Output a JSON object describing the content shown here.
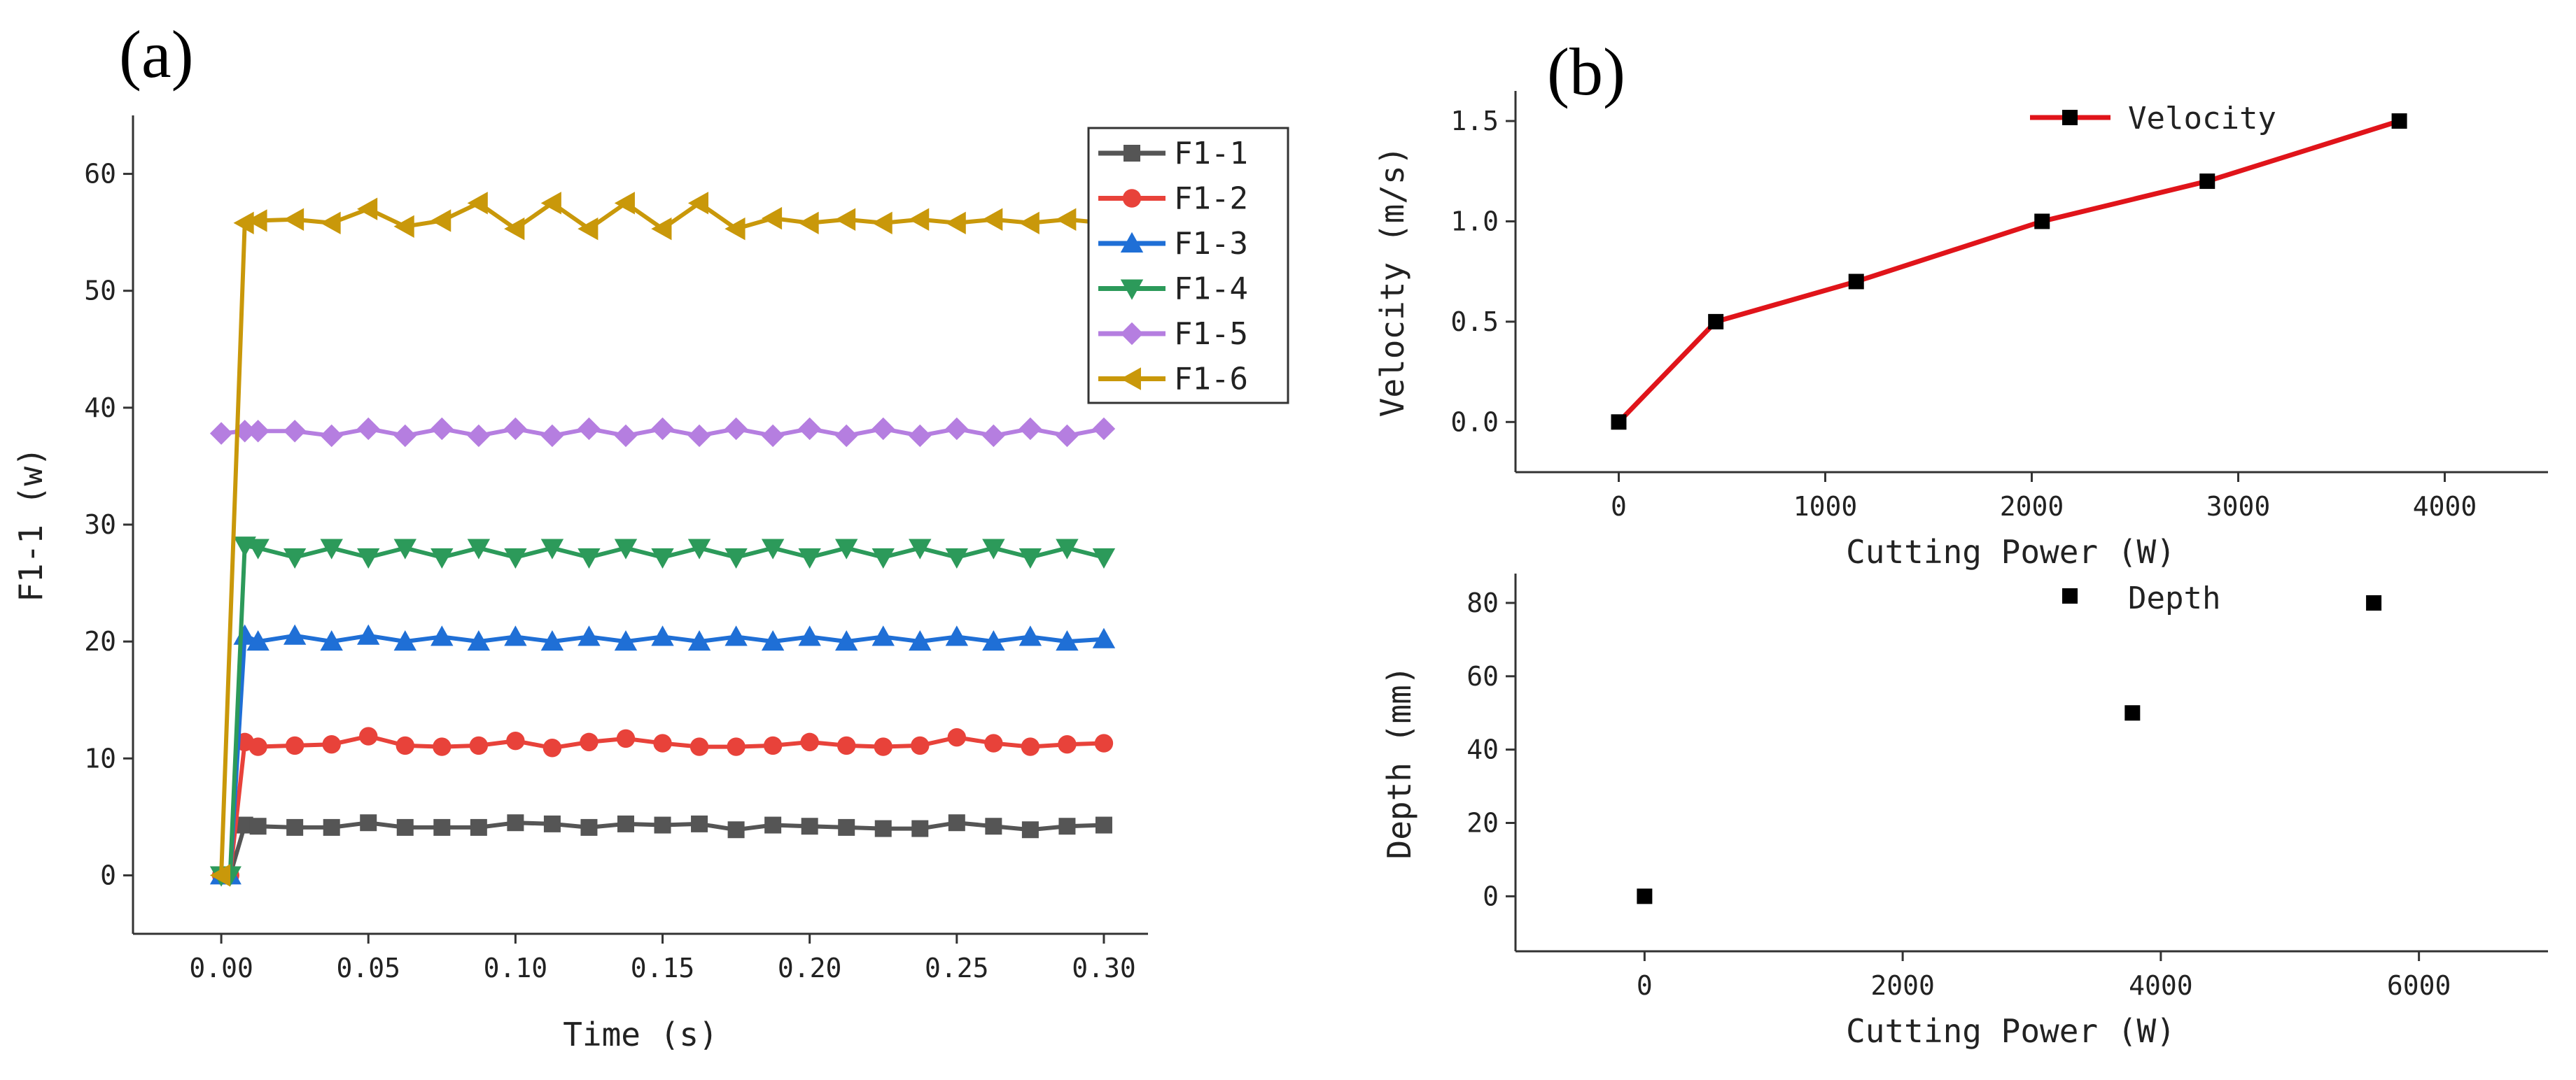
{
  "chart_data": [
    {
      "panel_label": "(a)",
      "type": "line",
      "xlabel": "Time (s)",
      "ylabel": "F1-1 (w)",
      "xlim": [
        -0.03,
        0.315
      ],
      "ylim": [
        -5,
        65
      ],
      "xticks": [
        0.0,
        0.05,
        0.1,
        0.15,
        0.2,
        0.25,
        0.3
      ],
      "xtick_labels": [
        "0.00",
        "0.05",
        "0.10",
        "0.15",
        "0.20",
        "0.25",
        "0.30"
      ],
      "yticks": [
        0,
        10,
        20,
        30,
        40,
        50,
        60
      ],
      "ytick_labels": [
        "0",
        "10",
        "20",
        "30",
        "40",
        "50",
        "60"
      ],
      "legend": {
        "placement": "top-right"
      },
      "x": [
        0,
        0.0125,
        0.025,
        0.0375,
        0.05,
        0.0625,
        0.075,
        0.0875,
        0.1,
        0.1125,
        0.125,
        0.1375,
        0.15,
        0.1625,
        0.175,
        0.1875,
        0.2,
        0.2125,
        0.225,
        0.2375,
        0.25,
        0.2625,
        0.275,
        0.2875,
        0.3
      ],
      "series": [
        {
          "name": "F1-1",
          "color": "#555555",
          "marker": "square",
          "x": [
            0,
            0.003,
            0.008,
            0.0125,
            0.025,
            0.0375,
            0.05,
            0.0625,
            0.075,
            0.0875,
            0.1,
            0.1125,
            0.125,
            0.1375,
            0.15,
            0.1625,
            0.175,
            0.1875,
            0.2,
            0.2125,
            0.225,
            0.2375,
            0.25,
            0.2625,
            0.275,
            0.2875,
            0.3
          ],
          "values": [
            0,
            0,
            4.3,
            4.2,
            4.1,
            4.1,
            4.5,
            4.1,
            4.1,
            4.1,
            4.5,
            4.4,
            4.1,
            4.4,
            4.3,
            4.4,
            3.9,
            4.3,
            4.2,
            4.1,
            4.0,
            4.0,
            4.5,
            4.2,
            3.9,
            4.2,
            4.3
          ]
        },
        {
          "name": "F1-2",
          "color": "#e8423a",
          "marker": "circle",
          "x": [
            0,
            0.003,
            0.008,
            0.0125,
            0.025,
            0.0375,
            0.05,
            0.0625,
            0.075,
            0.0875,
            0.1,
            0.1125,
            0.125,
            0.1375,
            0.15,
            0.1625,
            0.175,
            0.1875,
            0.2,
            0.2125,
            0.225,
            0.2375,
            0.25,
            0.2625,
            0.275,
            0.2875,
            0.3
          ],
          "values": [
            0,
            0,
            11.4,
            11.0,
            11.1,
            11.2,
            11.9,
            11.1,
            11.0,
            11.1,
            11.5,
            10.9,
            11.4,
            11.7,
            11.3,
            11.0,
            11.0,
            11.1,
            11.4,
            11.1,
            11.0,
            11.1,
            11.8,
            11.3,
            11.0,
            11.2,
            11.3
          ]
        },
        {
          "name": "F1-3",
          "color": "#1f6fd6",
          "marker": "triangle-up",
          "x": [
            0,
            0.003,
            0.008,
            0.0125,
            0.025,
            0.0375,
            0.05,
            0.0625,
            0.075,
            0.0875,
            0.1,
            0.1125,
            0.125,
            0.1375,
            0.15,
            0.1625,
            0.175,
            0.1875,
            0.2,
            0.2125,
            0.225,
            0.2375,
            0.25,
            0.2625,
            0.275,
            0.2875,
            0.3
          ],
          "values": [
            0,
            0,
            20.5,
            20.0,
            20.5,
            20.0,
            20.5,
            20.0,
            20.4,
            20.0,
            20.4,
            20.0,
            20.4,
            20.0,
            20.4,
            20.0,
            20.4,
            20.0,
            20.4,
            20.0,
            20.4,
            20.0,
            20.4,
            20.0,
            20.4,
            20.0,
            20.2
          ]
        },
        {
          "name": "F1-4",
          "color": "#2c9a5a",
          "marker": "triangle-down",
          "x": [
            0,
            0.003,
            0.008,
            0.0125,
            0.025,
            0.0375,
            0.05,
            0.0625,
            0.075,
            0.0875,
            0.1,
            0.1125,
            0.125,
            0.1375,
            0.15,
            0.1625,
            0.175,
            0.1875,
            0.2,
            0.2125,
            0.225,
            0.2375,
            0.25,
            0.2625,
            0.275,
            0.2875,
            0.3
          ],
          "values": [
            0,
            0,
            28.2,
            28.0,
            27.2,
            28.0,
            27.2,
            28.0,
            27.2,
            28.0,
            27.2,
            28.0,
            27.2,
            28.0,
            27.2,
            28.0,
            27.2,
            28.0,
            27.2,
            28.0,
            27.2,
            28.0,
            27.2,
            28.0,
            27.2,
            28.0,
            27.2
          ]
        },
        {
          "name": "F1-5",
          "color": "#b57ee0",
          "marker": "diamond",
          "x": [
            0,
            0.008,
            0.0125,
            0.025,
            0.0375,
            0.05,
            0.0625,
            0.075,
            0.0875,
            0.1,
            0.1125,
            0.125,
            0.1375,
            0.15,
            0.1625,
            0.175,
            0.1875,
            0.2,
            0.2125,
            0.225,
            0.2375,
            0.25,
            0.2625,
            0.275,
            0.2875,
            0.3
          ],
          "values": [
            37.8,
            38.0,
            38.0,
            38.0,
            37.6,
            38.2,
            37.6,
            38.2,
            37.6,
            38.2,
            37.6,
            38.2,
            37.6,
            38.2,
            37.6,
            38.2,
            37.6,
            38.2,
            37.6,
            38.2,
            37.6,
            38.2,
            37.6,
            38.2,
            37.6,
            38.2
          ]
        },
        {
          "name": "F1-6",
          "color": "#c9980a",
          "marker": "triangle-left",
          "x": [
            0,
            0.008,
            0.0125,
            0.025,
            0.0375,
            0.05,
            0.0625,
            0.075,
            0.0875,
            0.1,
            0.1125,
            0.125,
            0.1375,
            0.15,
            0.1625,
            0.175,
            0.1875,
            0.2,
            0.2125,
            0.225,
            0.2375,
            0.25,
            0.2625,
            0.275,
            0.2875,
            0.3
          ],
          "values": [
            0,
            55.8,
            56.0,
            56.1,
            55.8,
            57.0,
            55.5,
            56.0,
            57.5,
            55.3,
            57.5,
            55.3,
            57.5,
            55.3,
            57.5,
            55.3,
            56.2,
            55.8,
            56.1,
            55.8,
            56.1,
            55.8,
            56.1,
            55.8,
            56.1,
            55.8
          ]
        }
      ]
    },
    {
      "panel_label": "(b)",
      "type": "line",
      "xlabel": "Cutting Power (W)",
      "ylabel": "Velocity (m/s)",
      "xlim": [
        -500,
        4500
      ],
      "ylim": [
        -0.25,
        1.65
      ],
      "xticks": [
        0,
        1000,
        2000,
        3000,
        4000
      ],
      "xtick_labels": [
        "0",
        "1000",
        "2000",
        "3000",
        "4000"
      ],
      "yticks": [
        0.0,
        0.5,
        1.0,
        1.5
      ],
      "ytick_labels": [
        "0.0",
        "0.5",
        "1.0",
        "1.5"
      ],
      "legend": {
        "placement": "top-center"
      },
      "series": [
        {
          "name": "Velocity",
          "color": "#e0141a",
          "marker": "square",
          "x": [
            0,
            470,
            1150,
            2050,
            2850,
            3780
          ],
          "values": [
            0.0,
            0.5,
            0.7,
            1.0,
            1.2,
            1.5
          ]
        }
      ]
    },
    {
      "panel_label": "",
      "type": "scatter",
      "xlabel": "Cutting Power (W)",
      "ylabel": "Depth (mm)",
      "xlim": [
        -1000,
        7000
      ],
      "ylim": [
        -15,
        88
      ],
      "xticks": [
        0,
        2000,
        4000,
        6000
      ],
      "xtick_labels": [
        "0",
        "2000",
        "4000",
        "6000"
      ],
      "yticks": [
        0,
        20,
        40,
        60,
        80
      ],
      "ytick_labels": [
        "0",
        "20",
        "40",
        "60",
        "80"
      ],
      "legend": {
        "placement": "top-center"
      },
      "series": [
        {
          "name": "Depth",
          "color": "#000000",
          "marker": "square",
          "x": [
            0,
            3780,
            5650
          ],
          "values": [
            0,
            50,
            80
          ]
        }
      ]
    }
  ]
}
